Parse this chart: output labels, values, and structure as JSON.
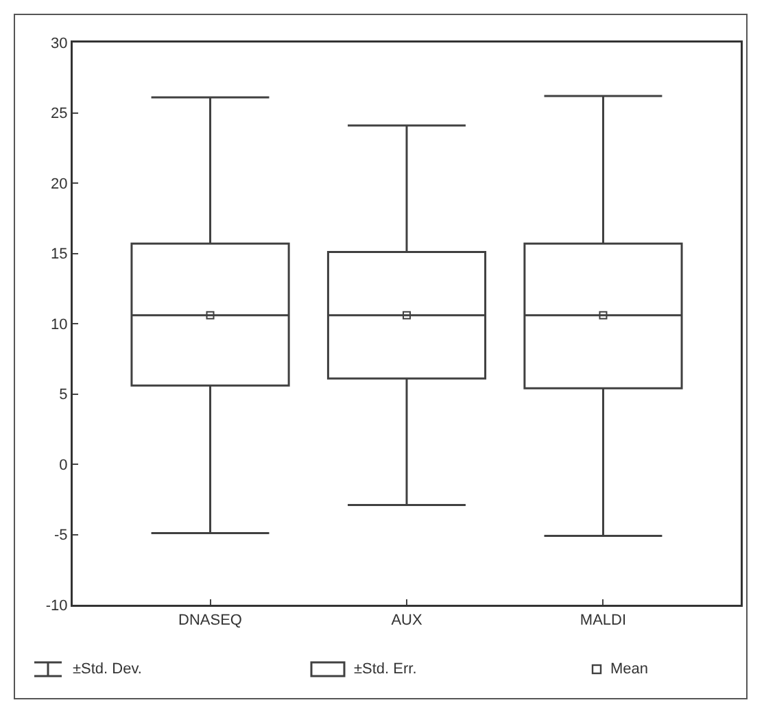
{
  "chart_data": {
    "type": "box",
    "categories": [
      "DNASEQ",
      "AUX",
      "MALDI"
    ],
    "boxes": [
      {
        "low": -4.9,
        "q1": 5.6,
        "median": 10.6,
        "q3": 15.7,
        "high": 26.1,
        "mean": 10.6
      },
      {
        "low": -2.9,
        "q1": 6.1,
        "median": 10.6,
        "q3": 15.1,
        "high": 24.1,
        "mean": 10.6
      },
      {
        "low": -5.1,
        "q1": 5.4,
        "median": 10.6,
        "q3": 15.7,
        "high": 26.2,
        "mean": 10.6
      }
    ],
    "color": "#404040",
    "ylim": [
      -10,
      30
    ],
    "yticks": [
      -10,
      -5,
      0,
      5,
      10,
      15,
      20,
      25,
      30
    ],
    "grid": false,
    "annotations": [
      "±Std. Dev.",
      "±Std. Err.",
      "Mean"
    ]
  }
}
